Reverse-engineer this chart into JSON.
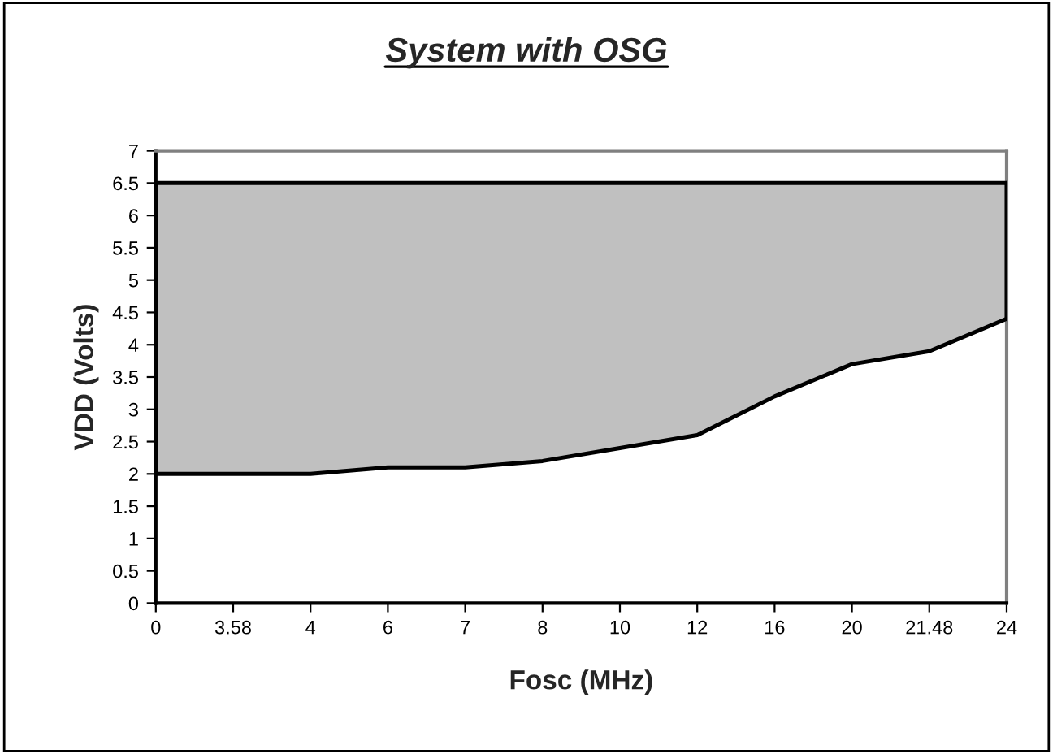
{
  "chart_data": {
    "type": "area",
    "title": "System with OSG",
    "xlabel": "Fosc (MHz)",
    "ylabel": "VDD (Volts)",
    "categories": [
      "0",
      "3.58",
      "4",
      "6",
      "7",
      "8",
      "10",
      "12",
      "16",
      "20",
      "21.48",
      "24"
    ],
    "stacked": true,
    "series": [
      {
        "color": "#ffffff",
        "values": [
          2,
          2,
          2,
          2.1,
          2.1,
          2.2,
          2.4,
          2.6,
          3.2,
          3.7,
          3.9,
          4.4
        ]
      },
      {
        "color": "#c0c0c0",
        "values": [
          4.5,
          4.5,
          4.5,
          4.4,
          4.4,
          4.3,
          4.1,
          3.9,
          3.3,
          2.8,
          2.6,
          2.1
        ]
      }
    ],
    "ylim": [
      0,
      7
    ],
    "yticks": [
      0,
      0.5,
      1,
      1.5,
      2,
      2.5,
      3,
      3.5,
      4,
      4.5,
      5,
      5.5,
      6,
      6.5,
      7
    ],
    "grid": false,
    "legend": false
  }
}
